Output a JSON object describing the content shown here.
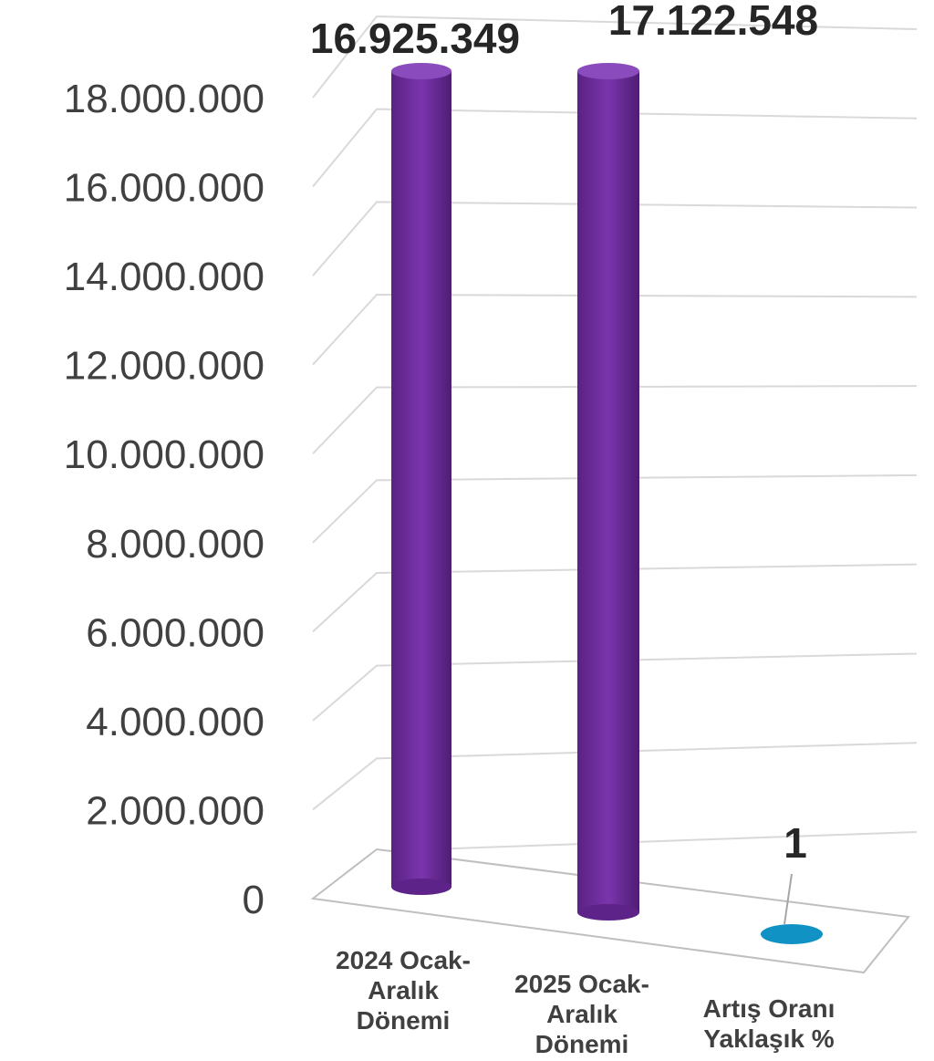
{
  "chart_data": {
    "type": "bar",
    "style": "3d-cylinder",
    "categories": [
      [
        "2024 Ocak-",
        "Aralık",
        "Dönemi"
      ],
      [
        "2025 Ocak-",
        "Aralık",
        "Dönemi"
      ],
      [
        "Artış Oranı",
        "Yaklaşık %"
      ]
    ],
    "values": [
      16925349,
      17122548,
      1
    ],
    "data_labels": [
      "16.925.349",
      "17.122.548",
      "1"
    ],
    "colors": [
      "#7030a0",
      "#7030a0",
      "#1192c5"
    ],
    "y_ticks": [
      "0",
      "2.000.000",
      "4.000.000",
      "6.000.000",
      "8.000.000",
      "10.000.000",
      "12.000.000",
      "14.000.000",
      "16.000.000",
      "18.000.000"
    ],
    "ylim": [
      0,
      18000000
    ],
    "grid": true,
    "title": "",
    "xlabel": "",
    "ylabel": ""
  }
}
